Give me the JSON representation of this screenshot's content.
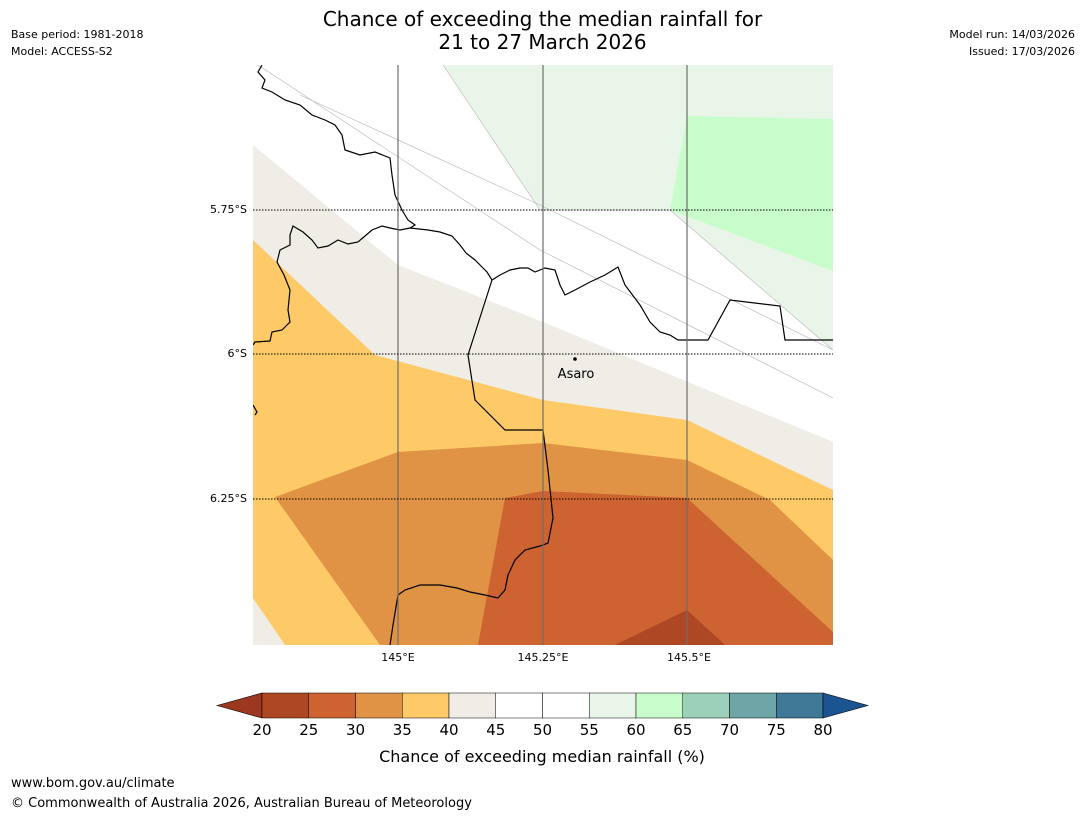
{
  "title": {
    "line1": "Chance of exceeding the median rainfall for",
    "line2": "21 to 27 March 2026"
  },
  "meta_left": {
    "base_period": "Base period: 1981-2018",
    "model": "Model: ACCESS-S2"
  },
  "meta_right": {
    "model_run": "Model run: 14/03/2026",
    "issued": "Issued: 17/03/2026"
  },
  "map": {
    "lat_labels": [
      "5.75°S",
      "6°S",
      "6.25°S"
    ],
    "lon_labels": [
      "145°E",
      "145.25°E",
      "145.5°E"
    ],
    "place": {
      "name": "Asaro",
      "lat": -6.01,
      "lon": 145.28
    }
  },
  "colorbar": {
    "title": "Chance of exceeding median rainfall (%)",
    "ticks": [
      "20",
      "25",
      "30",
      "35",
      "40",
      "45",
      "50",
      "55",
      "60",
      "65",
      "70",
      "75",
      "80"
    ],
    "colors": [
      "#ae4723",
      "#cc6331",
      "#e09245",
      "#fdca67",
      "#f0ece6",
      "#ffffff",
      "#ffffff",
      "#e9f5e9",
      "#c9fccb",
      "#9dd0b9",
      "#6ea5a6",
      "#3f7998"
    ],
    "under_color": "#9c3720",
    "over_color": "#1a5591"
  },
  "footer": {
    "url": "www.bom.gov.au/climate",
    "copyright": "© Commonwealth of Australia 2026, Australian Bureau of Meteorology"
  }
}
